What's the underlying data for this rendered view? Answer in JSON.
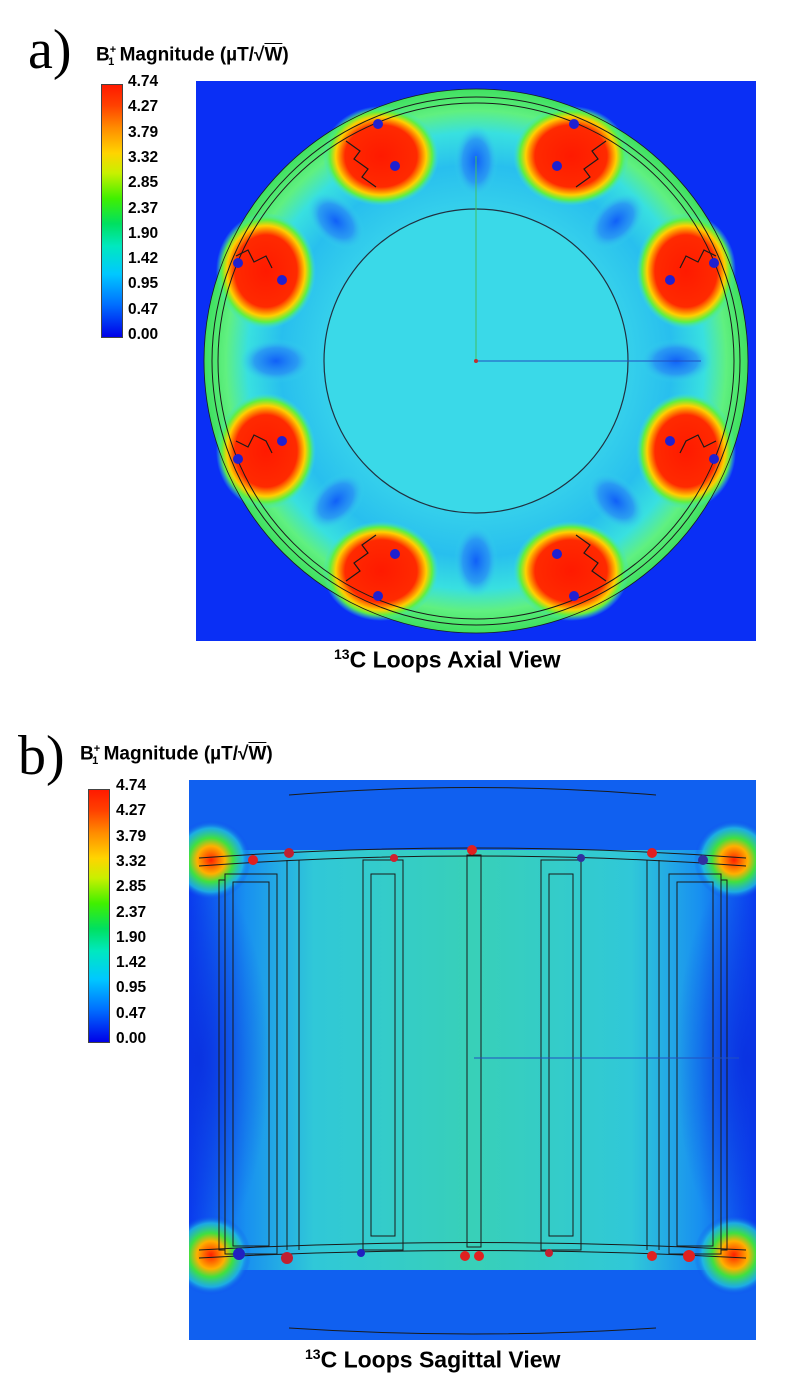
{
  "panel_a": {
    "letter": "a)",
    "title_b": "B",
    "title_sup": "+",
    "title_sub": "1",
    "title_text": "Magnitude (µT/√",
    "title_w": "W",
    "title_close": ")",
    "colorbar_ticks": [
      "4.74",
      "4.27",
      "3.79",
      "3.32",
      "2.85",
      "2.37",
      "1.90",
      "1.42",
      "0.95",
      "0.47",
      "0.00"
    ],
    "caption_sup": "13",
    "caption_text": "C Loops Axial View"
  },
  "panel_b": {
    "letter": "b)",
    "title_b": "B",
    "title_sup": "+",
    "title_sub": "1",
    "title_text": "Magnitude (µT/√",
    "title_w": "W",
    "title_close": ")",
    "colorbar_ticks": [
      "4.74",
      "4.27",
      "3.79",
      "3.32",
      "2.85",
      "2.37",
      "1.90",
      "1.42",
      "0.95",
      "0.47",
      "0.00"
    ],
    "caption_sup": "13",
    "caption_text": "C Loops Sagittal View"
  },
  "colors": {
    "background_field": "#0a2ff5",
    "phantom": "#2fd8e8",
    "hotspot": "#ff1f00",
    "port_marker": "#2020d0"
  }
}
